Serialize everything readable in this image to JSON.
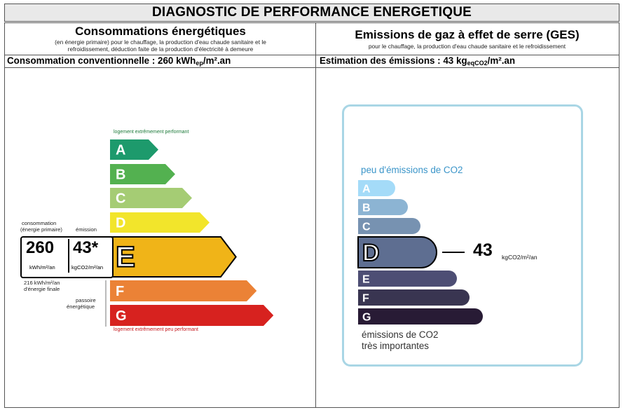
{
  "header": {
    "title": "DIAGNOSTIC DE PERFORMANCE ENERGETIQUE"
  },
  "energy": {
    "title": "Consommations énergétiques",
    "subtitle_line1": "(en énergie primaire) pour le chauffage, la production d'eau chaude sanitaire et le",
    "subtitle_line2": "refroidissement, déduction faite de la production d'électricité à demeure",
    "summary_prefix": "Consommation conventionnelle : 260 kWh",
    "summary_sub": "ep",
    "summary_suffix": "/m².an",
    "top_label": "logement extrêmement performant",
    "bottom_label": "logement extrêmement peu performant",
    "consumption_label_1": "consommation",
    "consumption_label_2": "(énergie primaire)",
    "emission_label": "émission",
    "value_primary": "260",
    "value_emission": "43*",
    "unit_primary": "kWh/m²/an",
    "unit_emission": "kgCO2/m²/an",
    "final_energy_1": "216 kWh/m²/an",
    "final_energy_2": "d'énergie finale",
    "passoire_1": "passoire",
    "passoire_2": "énergétique",
    "current_class": "E",
    "classes": [
      {
        "letter": "A",
        "color": "#1d9a6c"
      },
      {
        "letter": "B",
        "color": "#53b150"
      },
      {
        "letter": "C",
        "color": "#a5cc74"
      },
      {
        "letter": "D",
        "color": "#f2e52b"
      },
      {
        "letter": "E",
        "color": "#f0b418"
      },
      {
        "letter": "F",
        "color": "#eb8236"
      },
      {
        "letter": "G",
        "color": "#d7221f"
      }
    ]
  },
  "ges": {
    "title": "Emissions de gaz à effet de serre (GES)",
    "subtitle": "pour le chauffage, la production d'eau chaude sanitaire et le refroidissement",
    "summary_prefix": "Estimation des émissions : 43 kg",
    "summary_sub": "eqCO2",
    "summary_suffix": "/m².an",
    "top_label": "peu d'émissions de CO2",
    "bottom_label_1": "émissions de CO2",
    "bottom_label_2": "très importantes",
    "value": "43",
    "unit": "kgCO2/m²/an",
    "current_class": "D",
    "classes": [
      {
        "letter": "A",
        "color": "#a4dbf8"
      },
      {
        "letter": "B",
        "color": "#8cb4d3"
      },
      {
        "letter": "C",
        "color": "#7792b1"
      },
      {
        "letter": "D",
        "color": "#5e6e91"
      },
      {
        "letter": "E",
        "color": "#4d4e74"
      },
      {
        "letter": "F",
        "color": "#393551"
      },
      {
        "letter": "G",
        "color": "#281b35"
      }
    ]
  }
}
